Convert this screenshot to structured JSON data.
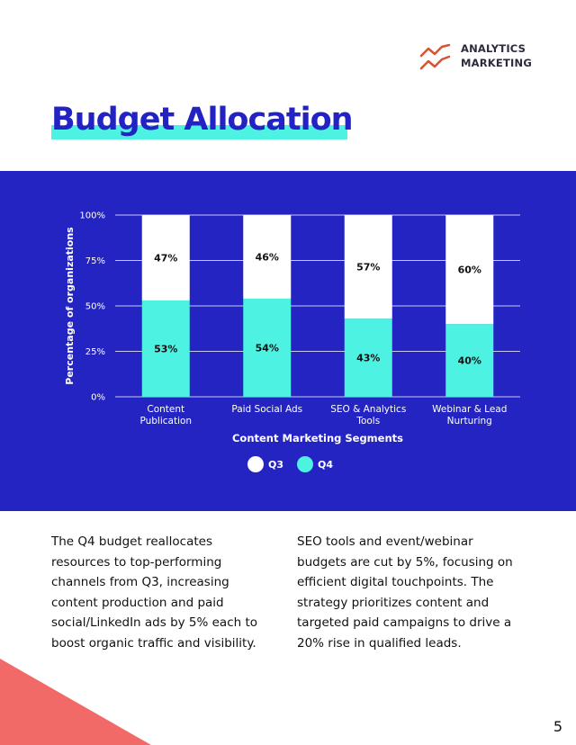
{
  "brand": {
    "line1": "ANALYTICS",
    "line2": "MARKETING",
    "icon": "trend-lines-icon",
    "icon_color": "#d9532e"
  },
  "title": "Budget Allocation",
  "colors": {
    "title": "#2323c4",
    "highlight": "#4df2e2",
    "band": "#2424c3",
    "q3": "#ffffff",
    "q4": "#4df2e2",
    "accent_triangle": "#f26a68"
  },
  "chart_data": {
    "type": "bar",
    "stacked": true,
    "categories": [
      [
        "Content",
        "Publication"
      ],
      [
        "Paid Social Ads"
      ],
      [
        "SEO & Analytics",
        "Tools"
      ],
      [
        "Webinar & Lead",
        "Nurturing"
      ]
    ],
    "series": [
      {
        "name": "Q3",
        "color": "#ffffff",
        "values": [
          47,
          46,
          57,
          60
        ]
      },
      {
        "name": "Q4",
        "color": "#4df2e2",
        "values": [
          53,
          54,
          43,
          40
        ]
      }
    ],
    "data_labels": {
      "Q3": [
        "47%",
        "46%",
        "57%",
        "60%"
      ],
      "Q4": [
        "53%",
        "54%",
        "43%",
        "40%"
      ]
    },
    "xlabel": "Content Marketing Segments",
    "ylabel": "Percentage of organizations",
    "ylim": [
      0,
      100
    ],
    "yticks": [
      0,
      25,
      50,
      75,
      100
    ],
    "ytick_labels": [
      "0%",
      "25%",
      "50%",
      "75%",
      "100%"
    ],
    "grid": true,
    "legend_position": "bottom"
  },
  "paragraphs": {
    "left": "The Q4 budget reallocates resources to top-performing channels from Q3, increasing content production and paid social/LinkedIn ads by 5% each to boost organic traffic and visibility.",
    "right": "SEO tools and event/webinar budgets are cut by 5%, focusing on efficient digital touchpoints. The strategy prioritizes content and targeted paid campaigns to drive a 20% rise in qualified leads."
  },
  "page_number": "5"
}
